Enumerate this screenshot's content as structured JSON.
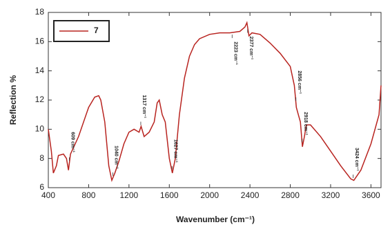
{
  "chart_data": {
    "type": "line",
    "x_label": "Wavenumber (cm⁻¹)",
    "y_label": "Reflection %",
    "x": [
      400,
      430,
      450,
      480,
      500,
      550,
      580,
      600,
      620,
      700,
      800,
      860,
      900,
      920,
      960,
      1000,
      1030,
      1060,
      1100,
      1150,
      1200,
      1250,
      1300,
      1320,
      1350,
      1400,
      1450,
      1480,
      1500,
      1530,
      1560,
      1600,
      1630,
      1660,
      1700,
      1750,
      1800,
      1850,
      1900,
      2000,
      2100,
      2200,
      2300,
      2350,
      2370,
      2390,
      2420,
      2500,
      2600,
      2700,
      2800,
      2840,
      2860,
      2880,
      2900,
      2920,
      2940,
      2960,
      3000,
      3100,
      3200,
      3300,
      3400,
      3430,
      3500,
      3600,
      3680,
      3700
    ],
    "series": [
      {
        "name": "7",
        "color": "#b8231f",
        "values": [
          10.0,
          8.5,
          7.0,
          7.5,
          8.2,
          8.3,
          8.0,
          7.2,
          8.3,
          9.5,
          11.5,
          12.2,
          12.3,
          12.0,
          10.5,
          7.5,
          6.5,
          7.0,
          7.8,
          9.0,
          9.8,
          10.0,
          9.8,
          10.2,
          9.5,
          9.8,
          10.5,
          11.8,
          12.0,
          11.0,
          10.5,
          8.0,
          7.0,
          8.0,
          11.0,
          13.5,
          15.0,
          15.8,
          16.2,
          16.5,
          16.6,
          16.6,
          16.7,
          17.0,
          17.3,
          16.4,
          16.6,
          16.5,
          15.9,
          15.2,
          14.3,
          13.0,
          11.5,
          11.0,
          10.5,
          8.8,
          9.5,
          10.3,
          10.3,
          9.5,
          8.5,
          7.5,
          6.6,
          6.5,
          7.2,
          9.0,
          11.0,
          13.0
        ]
      }
    ],
    "annotations": [
      {
        "text": "609 cm⁻¹",
        "x": 609
      },
      {
        "text": "1040 cm⁻¹",
        "x": 1040
      },
      {
        "text": "1317 cm⁻¹",
        "x": 1317
      },
      {
        "text": "1627 cm⁻¹",
        "x": 1627
      },
      {
        "text": "2223 cm⁻¹",
        "x": 2223
      },
      {
        "text": "2377 cm⁻¹",
        "x": 2377
      },
      {
        "text": "2856 cm⁻¹",
        "x": 2856
      },
      {
        "text": "2918 cm⁻¹",
        "x": 2918
      },
      {
        "text": "3424 cm⁻¹",
        "x": 3424
      }
    ],
    "xlim": [
      400,
      3700
    ],
    "xticks": [
      400,
      800,
      1200,
      1600,
      2000,
      2400,
      2800,
      3200,
      3600
    ],
    "ylim": [
      6,
      18
    ],
    "yticks": [
      6,
      8,
      10,
      12,
      14,
      16,
      18
    ],
    "legend": "upper left"
  }
}
